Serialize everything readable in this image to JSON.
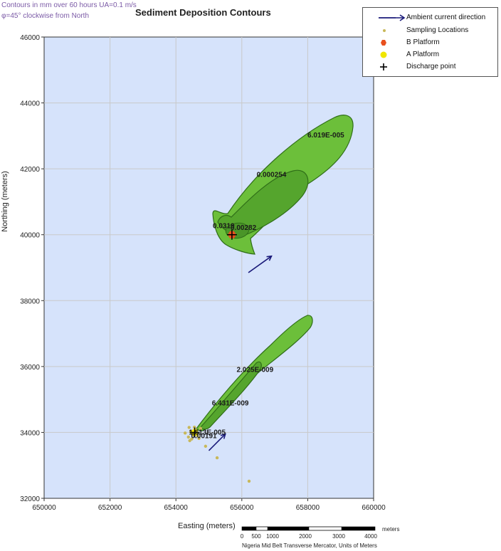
{
  "header": {
    "note_line1": "Contours in mm over 60 hours    UA=0.1 m/s",
    "note_line2": "φ=45° clockwise from North",
    "title": "Sediment Deposition Contours"
  },
  "legend": {
    "items": [
      {
        "label": "Ambient current direction",
        "icon": "arrow-icon",
        "color": "#1a1a7a"
      },
      {
        "label": "Sampling Locations",
        "icon": "dot-icon",
        "color": "#c8b85a"
      },
      {
        "label": "B Platform",
        "icon": "hexagon-icon",
        "color": "#e8501e"
      },
      {
        "label": "A Platform",
        "icon": "dot-icon",
        "color": "#f0e600"
      },
      {
        "label": "Discharge point",
        "icon": "plus-icon",
        "color": "#000000"
      }
    ]
  },
  "chart_data": {
    "type": "contour-map",
    "xlabel": "Easting (meters)",
    "ylabel": "Northing (meters)",
    "xlim": [
      650000,
      660000
    ],
    "ylim": [
      32000,
      46000
    ],
    "xticks": [
      "650000",
      "652000",
      "654000",
      "656000",
      "658000",
      "660000"
    ],
    "yticks": [
      "32000",
      "34000",
      "36000",
      "38000",
      "40000",
      "42000",
      "44000",
      "46000"
    ],
    "grid": true,
    "plot_background": "#d6e3fb",
    "contour_colors": {
      "outer": "#6cbf3a",
      "inner": "#4f9e2a",
      "edge": "#2f6e18"
    },
    "contour_labels": [
      {
        "text": "6.019E-005",
        "x": 658550,
        "y": 42950
      },
      {
        "text": "0.000254",
        "x": 656900,
        "y": 41750
      },
      {
        "text": "0.0319",
        "x": 655450,
        "y": 40200
      },
      {
        "text": "0.00282",
        "x": 656050,
        "y": 40150
      },
      {
        "text": "2.025E-009",
        "x": 656400,
        "y": 35830
      },
      {
        "text": "6.431E-009",
        "x": 655650,
        "y": 34820
      },
      {
        "text": "1.613E-005",
        "x": 654950,
        "y": 33930
      },
      {
        "text": "0.00191",
        "x": 654850,
        "y": 33830
      }
    ],
    "discharge_points": [
      {
        "label": "B Platform",
        "x": 655700,
        "y": 40000
      },
      {
        "label": "A Platform",
        "x": 654570,
        "y": 34000
      }
    ],
    "current_arrows": [
      {
        "from": [
          656200,
          38850
        ],
        "to": [
          656900,
          39350
        ]
      },
      {
        "from": [
          655000,
          33450
        ],
        "to": [
          655500,
          33950
        ]
      }
    ],
    "sampling_locations": [
      [
        654280,
        33980
      ],
      [
        654400,
        34150
      ],
      [
        654450,
        34020
      ],
      [
        654380,
        33860
      ],
      [
        654420,
        33750
      ],
      [
        654520,
        33920
      ],
      [
        654600,
        34080
      ],
      [
        654650,
        33900
      ],
      [
        654700,
        33820
      ],
      [
        654750,
        34120
      ],
      [
        654900,
        33580
      ],
      [
        655250,
        33230
      ],
      [
        656220,
        32520
      ],
      [
        654560,
        34160
      ],
      [
        654480,
        33800
      ]
    ],
    "scale_bar": {
      "ticks": [
        "0",
        "500",
        "1000",
        "2000",
        "3000",
        "4000"
      ],
      "unit": "meters",
      "projection": "Nigeria Mid Belt Transverse Mercator, Units of Meters"
    }
  }
}
